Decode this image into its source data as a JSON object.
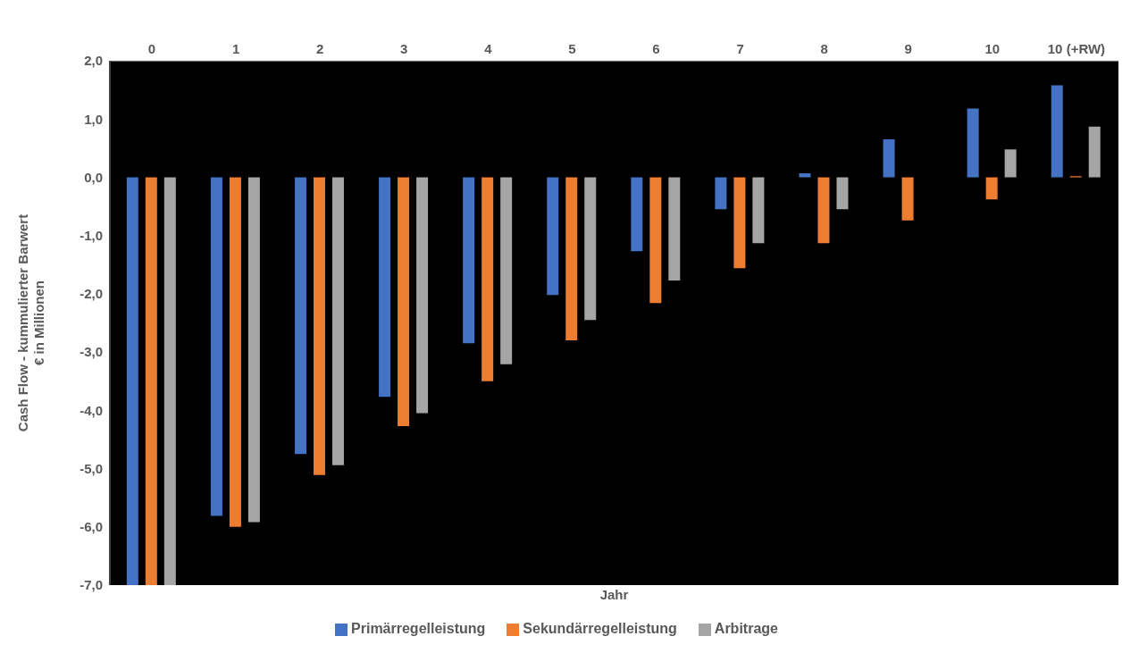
{
  "chart_data": {
    "type": "bar",
    "xlabel": "Jahr",
    "ylabel": "Cash Flow - kummulierter Barwert\n€ in Millionen",
    "categories": [
      "0",
      "1",
      "2",
      "3",
      "4",
      "5",
      "6",
      "7",
      "8",
      "9",
      "10",
      "10 (+RW)"
    ],
    "series": [
      {
        "name": "Primärregelleistung",
        "color": "#4472c4",
        "values": [
          -7.0,
          -5.81,
          -4.75,
          -3.77,
          -2.85,
          -2.02,
          -1.27,
          -0.55,
          0.07,
          0.65,
          1.18,
          1.58
        ]
      },
      {
        "name": "Sekundärregelleistung",
        "color": "#ed7d31",
        "values": [
          -7.0,
          -6.0,
          -5.11,
          -4.27,
          -3.5,
          -2.8,
          -2.16,
          -1.56,
          -1.13,
          -0.74,
          -0.38,
          0.02
        ]
      },
      {
        "name": "Arbitrage",
        "color": "#a5a5a5",
        "values": [
          -7.0,
          -5.92,
          -4.94,
          -4.05,
          -3.21,
          -2.45,
          -1.77,
          -1.13,
          -0.55,
          0,
          0.48,
          0.87
        ]
      }
    ],
    "ylim": [
      -7,
      2
    ],
    "yticks": [
      {
        "value": -7,
        "label": "-7,0"
      },
      {
        "value": -6,
        "label": "-6,0"
      },
      {
        "value": -5,
        "label": "-5,0"
      },
      {
        "value": -4,
        "label": "-4,0"
      },
      {
        "value": -3,
        "label": "-3,0"
      },
      {
        "value": -2,
        "label": "-2,0"
      },
      {
        "value": -1,
        "label": "-1,0"
      },
      {
        "value": 0,
        "label": "0,0"
      },
      {
        "value": 1,
        "label": "1,0"
      },
      {
        "value": 2,
        "label": "2,0"
      }
    ],
    "legend": "bottom"
  }
}
